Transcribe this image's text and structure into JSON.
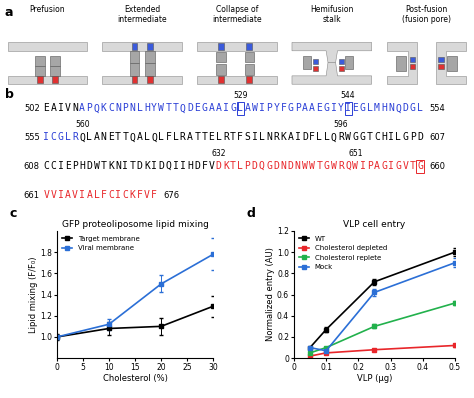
{
  "panel_labels": [
    "a",
    "b",
    "c",
    "d"
  ],
  "diagram": {
    "stages": [
      "Prefusion",
      "Extended\nintermediate",
      "Collapse of\nintermediate",
      "Hemifusion\nstalk",
      "Post-fusion\n(fusion pore)"
    ]
  },
  "sequence": {
    "lines": [
      {
        "start": 502,
        "end": 554,
        "segments": [
          {
            "text": "EAIVN",
            "color": "#000000"
          },
          {
            "text": "APQKCNPNLHYWTTQDEGAAIGLAWIPYFGPAAEGIYIEGLMHNQDGL",
            "color": "#2b3fd6"
          }
        ]
      },
      {
        "start": 555,
        "end": 607,
        "segments": [
          {
            "text": "ICGLR",
            "color": "#2b3fd6"
          },
          {
            "text": "QLANETTQALQLFLRATTELRTFSILNRKAIDFLLQRWGGTCHILGPD",
            "color": "#000000"
          }
        ]
      },
      {
        "start": 608,
        "end": 660,
        "segments": [
          {
            "text": "CCIEPHDWTKNITDKIDQIIHDFV",
            "color": "#000000"
          },
          {
            "text": "DKTLPDQGDNDNWWTGWRQWIPAGIGVTG",
            "color": "#e8262a"
          }
        ]
      },
      {
        "start": 661,
        "end": 676,
        "segments": [
          {
            "text": "VVIAVIALFCICKFVF",
            "color": "#e8262a"
          }
        ]
      }
    ],
    "marks": [
      529,
      544,
      560,
      596,
      632,
      651
    ],
    "boxed": [
      {
        "residue": 529,
        "color": "#2b3fd6"
      },
      {
        "residue": 544,
        "color": "#2b3fd6"
      },
      {
        "residue": 660,
        "color": "#e8262a"
      }
    ]
  },
  "chart_data": [
    {
      "type": "line",
      "title": "GFP proteoliposome lipid mixing",
      "x_label": "Cholesterol (%)",
      "y_label": "Lipid mixing (F/F₀)",
      "xlim": [
        0,
        30
      ],
      "xticks": [
        0,
        5,
        10,
        15,
        20,
        25,
        30
      ],
      "ylim": [
        0.8,
        2.0
      ],
      "yticks": [
        {
          "value": 1.0,
          "label": "1.0"
        },
        {
          "value": 1.2,
          "label": "1.2"
        },
        {
          "value": 1.4,
          "label": "1.4"
        },
        {
          "value": 1.6,
          "label": "1.6"
        },
        {
          "value": 1.8,
          "label": "1.8"
        }
      ],
      "legend": "upper left",
      "series": [
        {
          "name": "Target membrane",
          "color": "#000000",
          "marker": "square",
          "line_style": "solid",
          "x": [
            0,
            10,
            20,
            30
          ],
          "values": [
            1.0,
            1.08,
            1.1,
            1.29
          ],
          "errors": [
            0.03,
            0.06,
            0.08,
            0.1
          ]
        },
        {
          "name": "Viral membrane",
          "color": "#2b6fd6",
          "marker": "square",
          "line_style": "solid",
          "x": [
            0,
            10,
            20,
            30
          ],
          "values": [
            1.0,
            1.12,
            1.5,
            1.78
          ],
          "errors": [
            0.02,
            0.05,
            0.08,
            0.15
          ]
        }
      ]
    },
    {
      "type": "line",
      "title": "VLP cell entry",
      "x_label": "VLP (µg)",
      "y_label": "Normalized entry (AU)",
      "xlim": [
        0,
        0.5
      ],
      "xticks": [
        0,
        0.1,
        0.2,
        0.3,
        0.4,
        0.5
      ],
      "ylim": [
        0,
        1.2
      ],
      "yticks": [
        0,
        0.2,
        0.4,
        0.6,
        0.8,
        {
          "value": 1.0,
          "label": "1.0"
        },
        1.2
      ],
      "legend": "upper left",
      "series": [
        {
          "name": "WT",
          "color": "#000000",
          "marker": "square",
          "line_style": "solid",
          "x": [
            0.05,
            0.1,
            0.25,
            0.5
          ],
          "values": [
            0.1,
            0.27,
            0.72,
            1.0
          ],
          "errors": [
            0.01,
            0.02,
            0.03,
            0.04
          ]
        },
        {
          "name": "Cholesterol depleted",
          "color": "#e8262a",
          "marker": "square",
          "line_style": "solid",
          "x": [
            0.05,
            0.1,
            0.25,
            0.5
          ],
          "values": [
            0.02,
            0.05,
            0.08,
            0.12
          ],
          "errors": [
            0.005,
            0.01,
            0.01,
            0.01
          ]
        },
        {
          "name": "Cholesterol replete",
          "color": "#22b14c",
          "marker": "square",
          "line_style": "solid",
          "x": [
            0.05,
            0.1,
            0.25,
            0.5
          ],
          "values": [
            0.05,
            0.1,
            0.3,
            0.52
          ],
          "errors": [
            0.005,
            0.01,
            0.02,
            0.02
          ]
        },
        {
          "name": "Mock",
          "color": "#2b6fd6",
          "marker": "square",
          "line_style": "solid",
          "x": [
            0.05,
            0.1,
            0.25,
            0.5
          ],
          "values": [
            0.1,
            0.07,
            0.62,
            0.9
          ],
          "errors": [
            0.01,
            0.01,
            0.03,
            0.04
          ]
        }
      ]
    }
  ]
}
